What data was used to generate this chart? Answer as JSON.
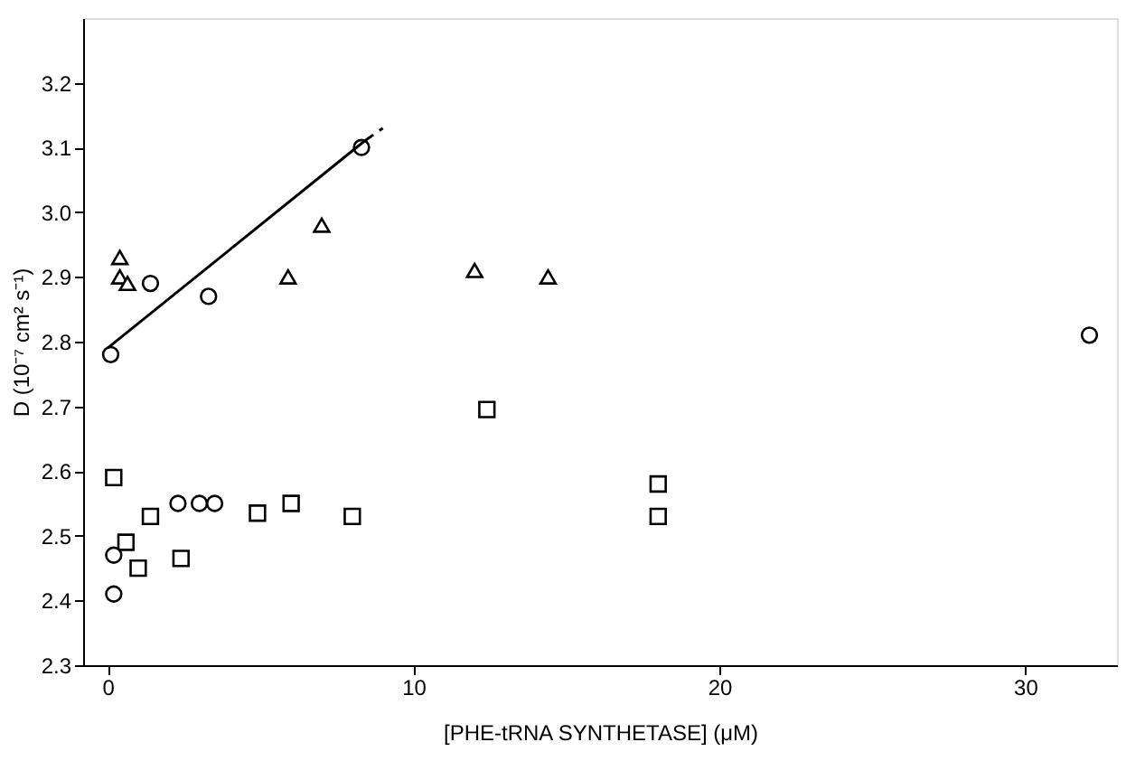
{
  "chart_data": {
    "type": "scatter",
    "xlabel": "[PHE-tRNA SYNTHETASE]   (μM)",
    "ylabel": "D (10⁻⁷ cm² s⁻¹)",
    "xlim": [
      -0.8,
      33
    ],
    "ylim": [
      2.3,
      3.3
    ],
    "xticks": [
      0,
      10,
      20,
      30
    ],
    "yticks": [
      {
        "value": 2.3,
        "label": "2.3"
      },
      {
        "value": 2.4,
        "label": "2.4"
      },
      {
        "value": 2.5,
        "label": "2.5"
      },
      {
        "value": 2.6,
        "label": "2.6"
      },
      {
        "value": 2.7,
        "label": "2.7"
      },
      {
        "value": 2.8,
        "label": "2.8"
      },
      {
        "value": 2.9,
        "label": "2.9"
      },
      {
        "value": 3.0,
        "label": "3.0"
      },
      {
        "value": 3.1,
        "label": "3.1"
      },
      {
        "value": 3.2,
        "label": "3.2"
      }
    ],
    "grid": false,
    "series": [
      {
        "color": "#000000",
        "marker": "circle",
        "x": [
          0.1,
          1.4,
          3.3,
          8.3
        ],
        "values": [
          2.78,
          2.89,
          2.87,
          3.1
        ]
      },
      {
        "color": "#000000",
        "marker": "triangle",
        "x": [
          0.4,
          0.4,
          0.65,
          5.9,
          7.0,
          12.0,
          14.4
        ],
        "values": [
          2.93,
          2.9,
          2.89,
          2.9,
          2.98,
          2.91,
          2.9
        ]
      },
      {
        "color": "#000000",
        "marker": "square",
        "x": [
          0.2,
          0.6,
          1.0,
          2.4,
          6.0,
          8.0
        ],
        "values": [
          2.59,
          2.49,
          2.45,
          2.465,
          2.55,
          2.53
        ]
      },
      {
        "color": "#000000",
        "marker": "circle",
        "x": [
          0.2,
          0.2,
          2.3,
          3.0,
          3.5,
          32.1
        ],
        "values": [
          2.47,
          2.41,
          2.55,
          2.55,
          2.55,
          2.81
        ]
      },
      {
        "color": "#000000",
        "marker": "square",
        "x": [
          1.4,
          4.9,
          12.4,
          18.0,
          18.0
        ],
        "values": [
          2.53,
          2.535,
          2.695,
          2.58,
          2.53
        ]
      },
      {
        "type": "line",
        "color": "#000000",
        "marker": "none",
        "line_style": "solid",
        "x": [
          0,
          8.4
        ],
        "values": [
          2.79,
          3.11
        ]
      },
      {
        "type": "line",
        "color": "#000000",
        "marker": "none",
        "line_style": "dashed",
        "x": [
          8.4,
          9
        ],
        "values": [
          3.11,
          3.13
        ]
      }
    ]
  }
}
